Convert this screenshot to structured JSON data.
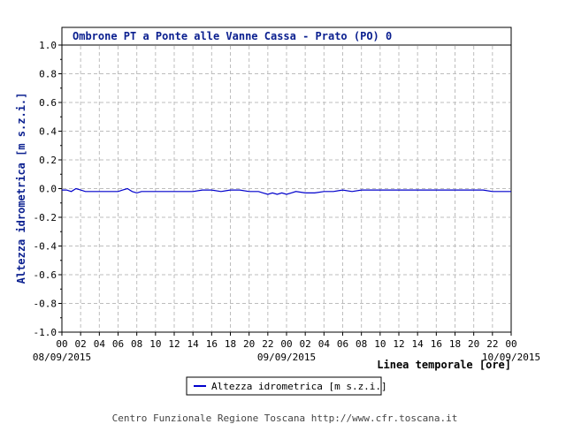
{
  "chart_data": {
    "type": "line",
    "title": "Ombrone PT a Ponte alle Vanne Cassa - Prato (PO) 0",
    "ylabel": "Altezza idrometrica [m s.z.i.]",
    "xlabel": "Linea temporale [ore]",
    "ylim": [
      -1.0,
      1.0
    ],
    "yticks": [
      "1.0",
      "0.8",
      "0.6",
      "0.4",
      "0.2",
      "0.0",
      "-0.2",
      "-0.4",
      "-0.6",
      "-0.8",
      "-1.0"
    ],
    "xlim_hours": [
      0,
      48
    ],
    "xticks": [
      "00",
      "02",
      "04",
      "06",
      "08",
      "10",
      "12",
      "14",
      "16",
      "18",
      "20",
      "22",
      "00",
      "02",
      "04",
      "06",
      "08",
      "10",
      "12",
      "14",
      "16",
      "18",
      "20",
      "22",
      "00"
    ],
    "date_labels": [
      "08/09/2015",
      "09/09/2015",
      "10/09/2015"
    ],
    "grid": true,
    "legend_position": "bottom-center",
    "colors": {
      "series": "#0000cc",
      "title": "#0a1f8f",
      "grid": "#bdbdbd"
    },
    "series": [
      {
        "name": "Altezza idrometrica [m s.z.i.]",
        "x": [
          0,
          0.5,
          1,
          1.5,
          2,
          2.5,
          3,
          4,
          5,
          6,
          6.5,
          7,
          7.5,
          8,
          8.5,
          9,
          10,
          11,
          12,
          13,
          14,
          15,
          16,
          17,
          18,
          19,
          20,
          21,
          21.5,
          22,
          22.5,
          23,
          23.5,
          24,
          24.5,
          25,
          26,
          27,
          28,
          29,
          30,
          31,
          32,
          33,
          34,
          35,
          36,
          37,
          38,
          39,
          40,
          41,
          42,
          43,
          44,
          45,
          46,
          46.5,
          47,
          47.5,
          48
        ],
        "values": [
          -0.01,
          -0.01,
          -0.02,
          0.0,
          -0.01,
          -0.02,
          -0.02,
          -0.02,
          -0.02,
          -0.02,
          -0.01,
          0.0,
          -0.02,
          -0.03,
          -0.02,
          -0.02,
          -0.02,
          -0.02,
          -0.02,
          -0.02,
          -0.02,
          -0.01,
          -0.01,
          -0.02,
          -0.01,
          -0.01,
          -0.02,
          -0.02,
          -0.03,
          -0.04,
          -0.03,
          -0.04,
          -0.03,
          -0.04,
          -0.03,
          -0.02,
          -0.03,
          -0.03,
          -0.02,
          -0.02,
          -0.01,
          -0.02,
          -0.01,
          -0.01,
          -0.01,
          -0.01,
          -0.01,
          -0.01,
          -0.01,
          -0.01,
          -0.01,
          -0.01,
          -0.01,
          -0.01,
          -0.01,
          -0.01,
          -0.02,
          -0.02,
          -0.02,
          -0.02,
          -0.02
        ]
      }
    ]
  },
  "footer": "Centro Funzionale Regione Toscana http://www.cfr.toscana.it"
}
